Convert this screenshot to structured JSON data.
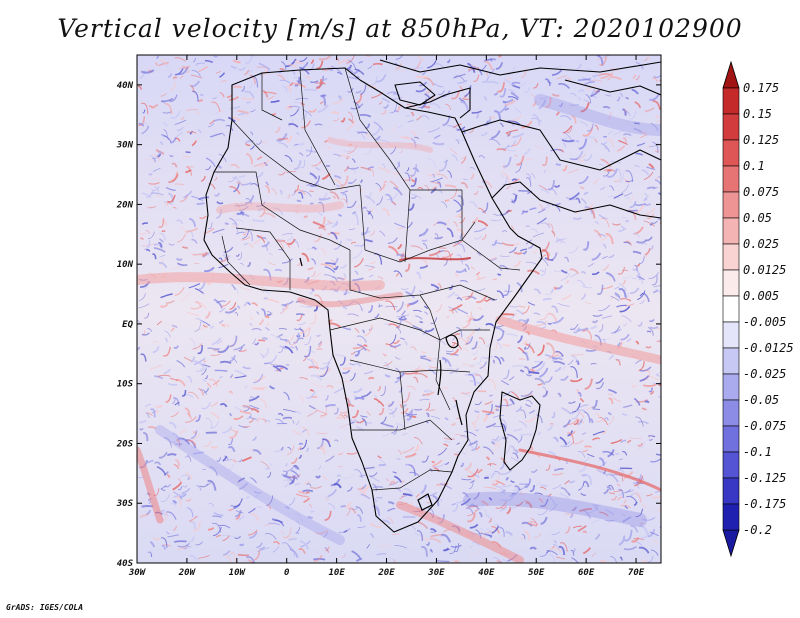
{
  "title": "Vertical velocity [m/s] at 850hPa, VT: 2020102900",
  "credit": "GrADS: IGES/COLA",
  "map": {
    "lon_range": [
      -30,
      75
    ],
    "lat_range": [
      -40,
      45
    ],
    "lat_labels": [
      {
        "lat": 40,
        "text": "40N"
      },
      {
        "lat": 30,
        "text": "30N"
      },
      {
        "lat": 20,
        "text": "20N"
      },
      {
        "lat": 10,
        "text": "10N"
      },
      {
        "lat": 0,
        "text": "EQ"
      },
      {
        "lat": -10,
        "text": "10S"
      },
      {
        "lat": -20,
        "text": "20S"
      },
      {
        "lat": -30,
        "text": "30S"
      },
      {
        "lat": -40,
        "text": "40S"
      }
    ],
    "lon_labels": [
      {
        "lon": -30,
        "text": "30W"
      },
      {
        "lon": -20,
        "text": "20W"
      },
      {
        "lon": -10,
        "text": "10W"
      },
      {
        "lon": 0,
        "text": "0"
      },
      {
        "lon": 10,
        "text": "10E"
      },
      {
        "lon": 20,
        "text": "20E"
      },
      {
        "lon": 30,
        "text": "30E"
      },
      {
        "lon": 40,
        "text": "40E"
      },
      {
        "lon": 50,
        "text": "50E"
      },
      {
        "lon": 60,
        "text": "60E"
      },
      {
        "lon": 70,
        "text": "70E"
      }
    ]
  },
  "colorbar": {
    "levels": [
      {
        "label": "0.175",
        "color": "#b41e1e"
      },
      {
        "label": "0.15",
        "color": "#c42a2a"
      },
      {
        "label": "0.125",
        "color": "#d23c3c"
      },
      {
        "label": "0.1",
        "color": "#de5656"
      },
      {
        "label": "0.075",
        "color": "#e67474"
      },
      {
        "label": "0.05",
        "color": "#ee9494"
      },
      {
        "label": "0.025",
        "color": "#f4b4b4"
      },
      {
        "label": "0.0125",
        "color": "#f9d2d2"
      },
      {
        "label": "0.005",
        "color": "#fcebeb"
      },
      {
        "label": "-0.005",
        "color": "#ffffff"
      },
      {
        "label": "-0.0125",
        "color": "#e4e4fa"
      },
      {
        "label": "-0.025",
        "color": "#c8c8f4"
      },
      {
        "label": "-0.05",
        "color": "#aaaaee"
      },
      {
        "label": "-0.075",
        "color": "#8c8ce6"
      },
      {
        "label": "-0.1",
        "color": "#7070de"
      },
      {
        "label": "-0.125",
        "color": "#5454d4"
      },
      {
        "label": "-0.175",
        "color": "#3838c4"
      },
      {
        "label": "-0.2",
        "color": "#2020b0"
      }
    ],
    "top_arrow_color": "#a01414",
    "bottom_arrow_color": "#1a1aa0"
  }
}
